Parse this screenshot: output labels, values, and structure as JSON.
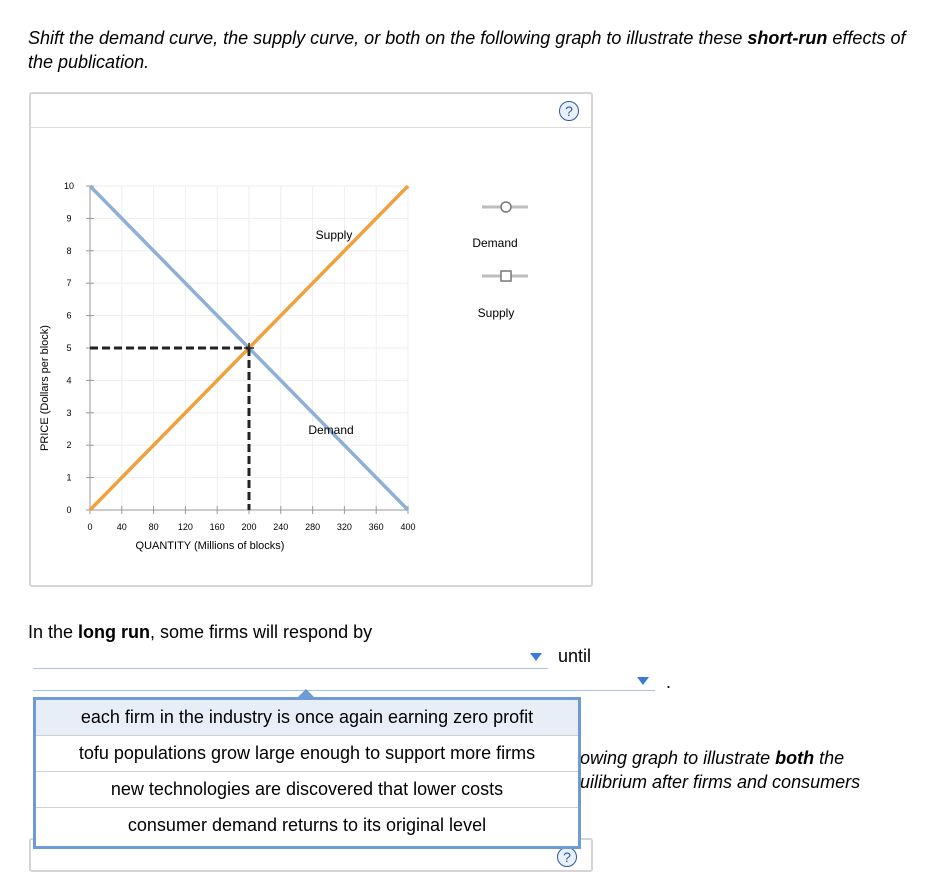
{
  "instructions": {
    "part1": "Shift the demand curve, the supply curve, or both on the following graph to illustrate these ",
    "bold1": "short-run",
    "part2": " effects of the publication."
  },
  "help_label": "?",
  "graph": {
    "y_label": "PRICE (Dollars per block)",
    "x_label": "QUANTITY (Millions of blocks)",
    "y_ticks": [
      "0",
      "1",
      "2",
      "3",
      "4",
      "5",
      "6",
      "7",
      "8",
      "9",
      "10"
    ],
    "x_ticks": [
      "0",
      "40",
      "80",
      "120",
      "160",
      "200",
      "240",
      "280",
      "320",
      "360",
      "400"
    ],
    "supply_label": "Supply",
    "demand_label": "Demand",
    "legend_demand": "Demand",
    "legend_supply": "Supply",
    "colors": {
      "supply": "#f0a03c",
      "demand": "#8eb0d6"
    }
  },
  "chart_data": {
    "type": "line",
    "xlabel": "QUANTITY (Millions of blocks)",
    "ylabel": "PRICE (Dollars per block)",
    "xlim": [
      0,
      400
    ],
    "ylim": [
      0,
      10
    ],
    "series": [
      {
        "name": "Supply",
        "x": [
          0,
          400
        ],
        "y": [
          0,
          10
        ]
      },
      {
        "name": "Demand",
        "x": [
          0,
          400
        ],
        "y": [
          10,
          0
        ]
      }
    ],
    "equilibrium": {
      "x": 200,
      "y": 5
    }
  },
  "question": {
    "prefix": "In the ",
    "bold": "long run",
    "suffix": ", some firms will respond by",
    "until": "until",
    "period": "."
  },
  "behind_text": {
    "line1a": "owing graph to illustrate ",
    "line1b": "both",
    "line1c": " the",
    "line2": "uilibrium after firms and consumers"
  },
  "dropdown_options": [
    "each firm in the industry is once again earning zero profit",
    "tofu populations grow large enough to support more firms",
    "new technologies are discovered that lower costs",
    "consumer demand returns to its original level"
  ]
}
